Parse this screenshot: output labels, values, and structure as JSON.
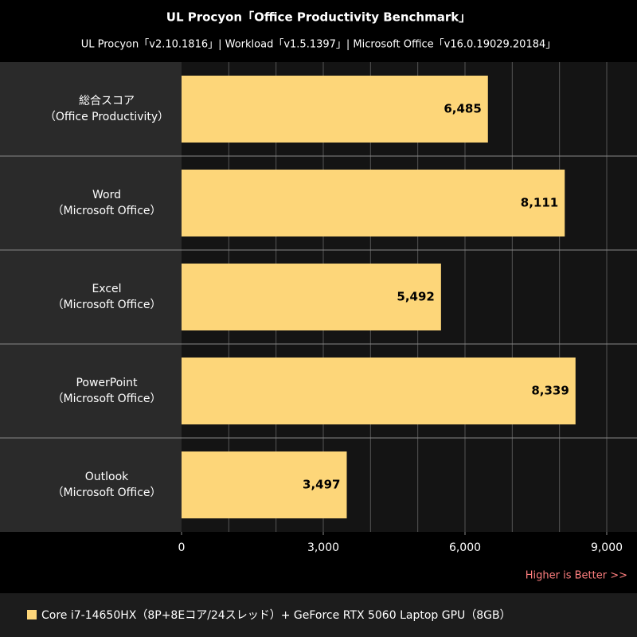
{
  "chart_data": {
    "type": "bar",
    "orientation": "horizontal",
    "title": "UL Procyon「Office Productivity Benchmark」",
    "subtitle": "UL Procyon「v2.10.1816」| Workload「v1.5.1397」| Microsoft Office「v16.0.19029.20184」",
    "categories": [
      [
        "総合スコア",
        "（Office Productivity）"
      ],
      [
        "Word",
        "（Microsoft Office）"
      ],
      [
        "Excel",
        "（Microsoft Office）"
      ],
      [
        "PowerPoint",
        "（Microsoft Office）"
      ],
      [
        "Outlook",
        "（Microsoft Office）"
      ]
    ],
    "series": [
      {
        "name": "Core i7-14650HX（8P+8Eコア/24スレッド）+ GeForce RTX 5060 Laptop GPU（8GB）",
        "color": "#fdd679",
        "values": [
          6485,
          8111,
          5492,
          8339,
          3497
        ],
        "value_labels": [
          "6,485",
          "8,111",
          "5,492",
          "8,339",
          "3,497"
        ]
      }
    ],
    "xlim": [
      0,
      9000
    ],
    "xticks": [
      0,
      {
        "value": 3000,
        "label": "3,000"
      },
      {
        "value": 6000,
        "label": "6,000"
      },
      {
        "value": 9000,
        "label": "9,000"
      }
    ],
    "x_grid": [
      1000,
      2000,
      3000,
      4000,
      5000,
      6000,
      7000,
      8000,
      9000
    ],
    "note": "Higher is Better >>"
  }
}
